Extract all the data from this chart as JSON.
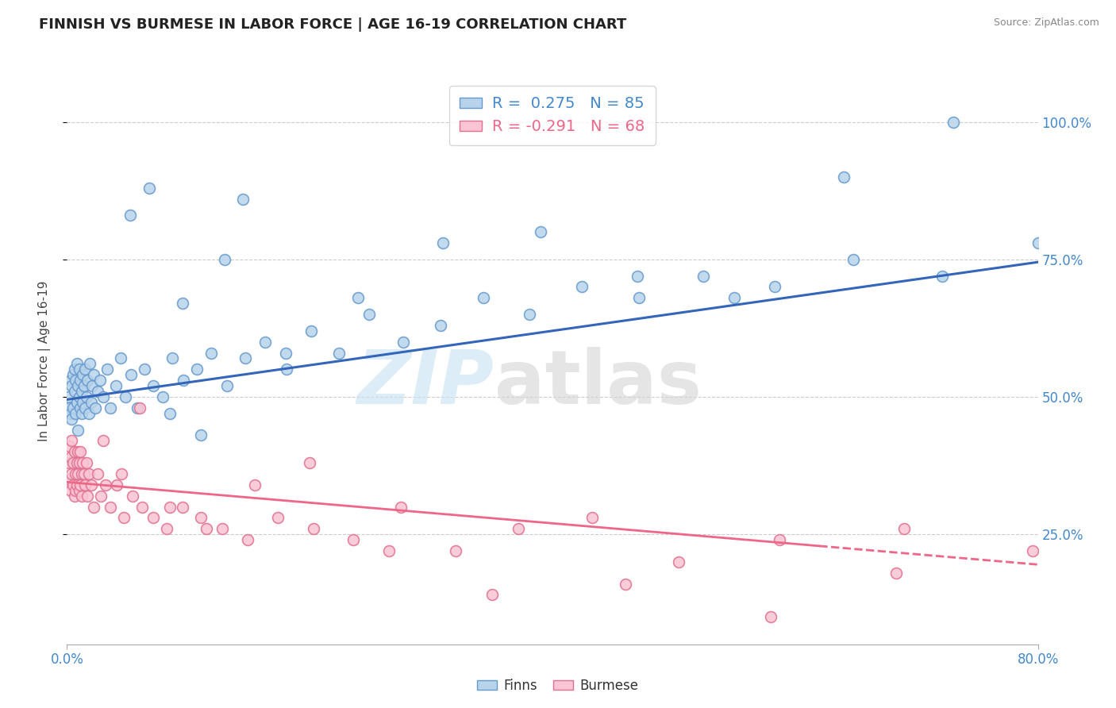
{
  "title": "FINNISH VS BURMESE IN LABOR FORCE | AGE 16-19 CORRELATION CHART",
  "source": "Source: ZipAtlas.com",
  "ylabel": "In Labor Force | Age 16-19",
  "ytick_labels": [
    "100.0%",
    "75.0%",
    "50.0%",
    "25.0%"
  ],
  "ytick_values": [
    1.0,
    0.75,
    0.5,
    0.25
  ],
  "xlim": [
    0.0,
    0.8
  ],
  "ylim": [
    0.05,
    1.08
  ],
  "legend_finns": "R =  0.275   N = 85",
  "legend_burmese": "R = -0.291   N = 68",
  "finn_color": "#b8d4ec",
  "finn_edge_color": "#6699cc",
  "burmese_color": "#f9c4d4",
  "burmese_edge_color": "#e07090",
  "finn_line_color": "#3366bb",
  "burmese_line_color": "#ee6688",
  "finn_line_solid_end": 0.8,
  "burmese_line_solid_end": 0.62,
  "burmese_line_dash_start": 0.62,
  "burmese_line_dash_end": 0.8,
  "finn_trend_start_y": 0.495,
  "finn_trend_end_y": 0.745,
  "burmese_trend_start_y": 0.345,
  "burmese_trend_end_y": 0.195,
  "finns_x": [
    0.001,
    0.002,
    0.003,
    0.003,
    0.004,
    0.004,
    0.005,
    0.005,
    0.006,
    0.006,
    0.007,
    0.007,
    0.008,
    0.008,
    0.009,
    0.009,
    0.01,
    0.01,
    0.011,
    0.011,
    0.012,
    0.012,
    0.013,
    0.013,
    0.014,
    0.015,
    0.015,
    0.016,
    0.017,
    0.018,
    0.019,
    0.02,
    0.021,
    0.022,
    0.023,
    0.025,
    0.027,
    0.03,
    0.033,
    0.036,
    0.04,
    0.044,
    0.048,
    0.053,
    0.058,
    0.064,
    0.071,
    0.079,
    0.087,
    0.096,
    0.107,
    0.119,
    0.132,
    0.147,
    0.163,
    0.181,
    0.201,
    0.224,
    0.249,
    0.277,
    0.308,
    0.343,
    0.381,
    0.424,
    0.471,
    0.524,
    0.583,
    0.648,
    0.721,
    0.8,
    0.095,
    0.13,
    0.18,
    0.24,
    0.31,
    0.39,
    0.47,
    0.55,
    0.64,
    0.73,
    0.052,
    0.068,
    0.085,
    0.11,
    0.145
  ],
  "finns_y": [
    0.5,
    0.48,
    0.53,
    0.47,
    0.52,
    0.46,
    0.54,
    0.48,
    0.51,
    0.55,
    0.47,
    0.53,
    0.49,
    0.56,
    0.44,
    0.52,
    0.5,
    0.55,
    0.48,
    0.53,
    0.51,
    0.47,
    0.54,
    0.49,
    0.52,
    0.48,
    0.55,
    0.5,
    0.53,
    0.47,
    0.56,
    0.49,
    0.52,
    0.54,
    0.48,
    0.51,
    0.53,
    0.5,
    0.55,
    0.48,
    0.52,
    0.57,
    0.5,
    0.54,
    0.48,
    0.55,
    0.52,
    0.5,
    0.57,
    0.53,
    0.55,
    0.58,
    0.52,
    0.57,
    0.6,
    0.55,
    0.62,
    0.58,
    0.65,
    0.6,
    0.63,
    0.68,
    0.65,
    0.7,
    0.68,
    0.72,
    0.7,
    0.75,
    0.72,
    0.78,
    0.67,
    0.75,
    0.58,
    0.68,
    0.78,
    0.8,
    0.72,
    0.68,
    0.9,
    1.0,
    0.83,
    0.88,
    0.47,
    0.43,
    0.86
  ],
  "burmese_x": [
    0.001,
    0.002,
    0.002,
    0.003,
    0.003,
    0.004,
    0.004,
    0.005,
    0.005,
    0.006,
    0.006,
    0.007,
    0.007,
    0.008,
    0.008,
    0.009,
    0.009,
    0.01,
    0.01,
    0.011,
    0.011,
    0.012,
    0.012,
    0.013,
    0.014,
    0.015,
    0.016,
    0.017,
    0.018,
    0.02,
    0.022,
    0.025,
    0.028,
    0.032,
    0.036,
    0.041,
    0.047,
    0.054,
    0.062,
    0.071,
    0.082,
    0.095,
    0.11,
    0.128,
    0.149,
    0.174,
    0.203,
    0.236,
    0.275,
    0.32,
    0.372,
    0.433,
    0.504,
    0.587,
    0.683,
    0.796,
    0.03,
    0.045,
    0.06,
    0.085,
    0.115,
    0.155,
    0.2,
    0.265,
    0.35,
    0.46,
    0.58,
    0.69
  ],
  "burmese_y": [
    0.38,
    0.35,
    0.41,
    0.33,
    0.39,
    0.36,
    0.42,
    0.34,
    0.38,
    0.32,
    0.4,
    0.36,
    0.33,
    0.38,
    0.34,
    0.4,
    0.36,
    0.33,
    0.38,
    0.34,
    0.4,
    0.36,
    0.32,
    0.38,
    0.36,
    0.34,
    0.38,
    0.32,
    0.36,
    0.34,
    0.3,
    0.36,
    0.32,
    0.34,
    0.3,
    0.34,
    0.28,
    0.32,
    0.3,
    0.28,
    0.26,
    0.3,
    0.28,
    0.26,
    0.24,
    0.28,
    0.26,
    0.24,
    0.3,
    0.22,
    0.26,
    0.28,
    0.2,
    0.24,
    0.18,
    0.22,
    0.42,
    0.36,
    0.48,
    0.3,
    0.26,
    0.34,
    0.38,
    0.22,
    0.14,
    0.16,
    0.1,
    0.26
  ]
}
